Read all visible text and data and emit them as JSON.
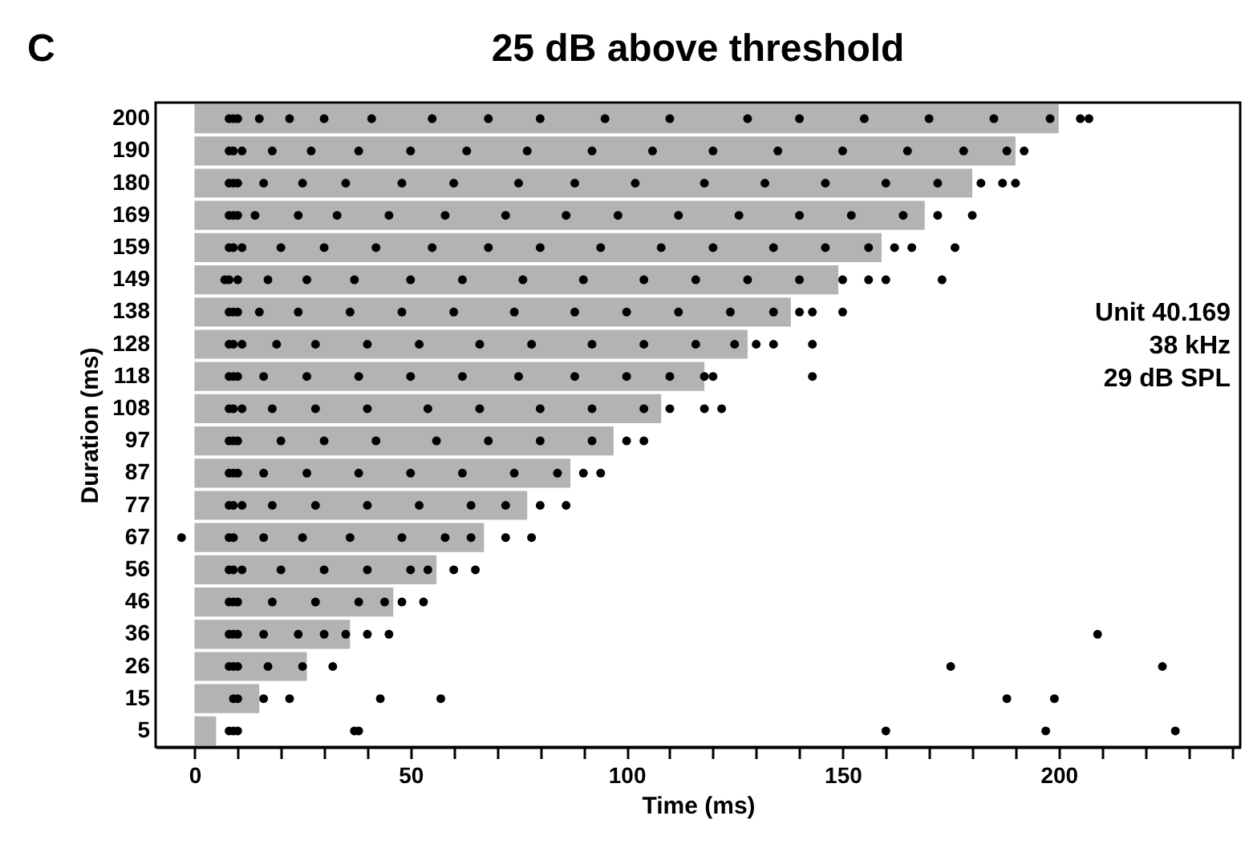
{
  "chart_data": {
    "type": "bar",
    "orientation": "horizontal",
    "title": "25 dB above threshold",
    "xlabel": "Time (ms)",
    "ylabel": "Duration (ms)",
    "annotations": [
      "C",
      "Unit 40.169",
      "38 kHz",
      "29 dB SPL"
    ],
    "categories": [
      "200",
      "190",
      "180",
      "169",
      "159",
      "149",
      "138",
      "128",
      "118",
      "108",
      "97",
      "87",
      "77",
      "67",
      "56",
      "46",
      "36",
      "26",
      "15",
      "5"
    ],
    "xlim": [
      -9,
      242
    ],
    "xticks": [
      0,
      {
        "value": 10,
        "label": null
      },
      {
        "value": 20,
        "label": null
      },
      {
        "value": 30,
        "label": null
      },
      {
        "value": 40,
        "label": null
      },
      50,
      {
        "value": 60,
        "label": null
      },
      {
        "value": 70,
        "label": null
      },
      {
        "value": 80,
        "label": null
      },
      {
        "value": 90,
        "label": null
      },
      100,
      {
        "value": 110,
        "label": null
      },
      {
        "value": 120,
        "label": null
      },
      {
        "value": 130,
        "label": null
      },
      {
        "value": 140,
        "label": null
      },
      150,
      {
        "value": 160,
        "label": null
      },
      {
        "value": 170,
        "label": null
      },
      {
        "value": 180,
        "label": null
      },
      {
        "value": 190,
        "label": null
      },
      200,
      {
        "value": 210,
        "label": null
      },
      {
        "value": 220,
        "label": null
      },
      {
        "value": 230,
        "label": null
      },
      {
        "value": 240,
        "label": null
      }
    ],
    "grid": false,
    "series": [
      {
        "color": "#b3b3b3",
        "values": [
          200,
          190,
          180,
          169,
          159,
          149,
          138,
          128,
          118,
          108,
          97,
          87,
          77,
          67,
          56,
          46,
          36,
          26,
          15,
          5
        ]
      },
      {
        "type": "scatter",
        "color": "#000000",
        "marker": "circle",
        "x": [
          "200",
          "200",
          "200",
          "200",
          "200",
          "200",
          "200",
          "200",
          "200",
          "200",
          "200",
          "200",
          "200",
          "200",
          "200",
          "200",
          "200",
          "200",
          "200",
          "200",
          "190",
          "190",
          "190",
          "190",
          "190",
          "190",
          "190",
          "190",
          "190",
          "190",
          "190",
          "190",
          "190",
          "190",
          "190",
          "190",
          "190",
          "190",
          "180",
          "180",
          "180",
          "180",
          "180",
          "180",
          "180",
          "180",
          "180",
          "180",
          "180",
          "180",
          "180",
          "180",
          "180",
          "180",
          "180",
          "180",
          "180",
          "169",
          "169",
          "169",
          "169",
          "169",
          "169",
          "169",
          "169",
          "169",
          "169",
          "169",
          "169",
          "169",
          "169",
          "169",
          "169",
          "169",
          "169",
          "159",
          "159",
          "159",
          "159",
          "159",
          "159",
          "159",
          "159",
          "159",
          "159",
          "159",
          "159",
          "159",
          "159",
          "159",
          "159",
          "159",
          "159",
          "149",
          "149",
          "149",
          "149",
          "149",
          "149",
          "149",
          "149",
          "149",
          "149",
          "149",
          "149",
          "149",
          "149",
          "149",
          "149",
          "149",
          "149",
          "138",
          "138",
          "138",
          "138",
          "138",
          "138",
          "138",
          "138",
          "138",
          "138",
          "138",
          "138",
          "138",
          "138",
          "138",
          "138",
          "138",
          "128",
          "128",
          "128",
          "128",
          "128",
          "128",
          "128",
          "128",
          "128",
          "128",
          "128",
          "128",
          "128",
          "128",
          "128",
          "128",
          "118",
          "118",
          "118",
          "118",
          "118",
          "118",
          "118",
          "118",
          "118",
          "118",
          "118",
          "118",
          "118",
          "118",
          "118",
          "108",
          "108",
          "108",
          "108",
          "108",
          "108",
          "108",
          "108",
          "108",
          "108",
          "108",
          "108",
          "108",
          "108",
          "97",
          "97",
          "97",
          "97",
          "97",
          "97",
          "97",
          "97",
          "97",
          "97",
          "97",
          "97",
          "87",
          "87",
          "87",
          "87",
          "87",
          "87",
          "87",
          "87",
          "87",
          "87",
          "87",
          "87",
          "77",
          "77",
          "77",
          "77",
          "77",
          "77",
          "77",
          "77",
          "77",
          "77",
          "77",
          "67",
          "67",
          "67",
          "67",
          "67",
          "67",
          "67",
          "67",
          "67",
          "67",
          "67",
          "56",
          "56",
          "56",
          "56",
          "56",
          "56",
          "56",
          "56",
          "56",
          "56",
          "46",
          "46",
          "46",
          "46",
          "46",
          "46",
          "46",
          "46",
          "46",
          "36",
          "36",
          "36",
          "36",
          "36",
          "36",
          "36",
          "36",
          "36",
          "36",
          "26",
          "26",
          "26",
          "26",
          "26",
          "26",
          "26",
          "26",
          "15",
          "15",
          "15",
          "15",
          "15",
          "15",
          "15",
          "15",
          "5",
          "5",
          "5",
          "5",
          "5",
          "5",
          "5",
          "5"
        ],
        "values": [
          8,
          9,
          10,
          15,
          22,
          30,
          41,
          55,
          68,
          80,
          95,
          110,
          128,
          140,
          155,
          170,
          185,
          198,
          205,
          207,
          8,
          9,
          11,
          18,
          27,
          38,
          50,
          63,
          77,
          92,
          106,
          120,
          135,
          150,
          165,
          178,
          188,
          192,
          8,
          9,
          10,
          16,
          25,
          35,
          48,
          60,
          75,
          88,
          102,
          118,
          132,
          146,
          160,
          172,
          182,
          187,
          190,
          8,
          9,
          10,
          14,
          24,
          33,
          45,
          58,
          72,
          86,
          98,
          112,
          126,
          140,
          152,
          164,
          172,
          180,
          8,
          9,
          11,
          20,
          30,
          42,
          55,
          68,
          80,
          94,
          108,
          120,
          134,
          146,
          156,
          162,
          166,
          176,
          7,
          8,
          10,
          17,
          26,
          37,
          50,
          62,
          76,
          90,
          104,
          116,
          128,
          140,
          150,
          156,
          160,
          173,
          8,
          9,
          10,
          15,
          24,
          36,
          48,
          60,
          74,
          88,
          100,
          112,
          124,
          134,
          140,
          143,
          150,
          8,
          9,
          11,
          19,
          28,
          40,
          52,
          66,
          78,
          92,
          104,
          116,
          125,
          130,
          134,
          143,
          8,
          9,
          10,
          16,
          26,
          38,
          50,
          62,
          75,
          88,
          100,
          110,
          118,
          120,
          143,
          8,
          9,
          11,
          18,
          28,
          40,
          54,
          66,
          80,
          92,
          104,
          110,
          118,
          122,
          8,
          9,
          10,
          20,
          30,
          42,
          56,
          68,
          80,
          92,
          100,
          104,
          8,
          9,
          10,
          16,
          26,
          38,
          50,
          62,
          74,
          84,
          90,
          94,
          8,
          9,
          11,
          18,
          28,
          40,
          52,
          64,
          72,
          80,
          86,
          -3,
          8,
          9,
          16,
          25,
          36,
          48,
          58,
          64,
          72,
          78,
          8,
          9,
          11,
          20,
          30,
          40,
          50,
          54,
          60,
          65,
          8,
          9,
          10,
          18,
          28,
          38,
          44,
          48,
          53,
          8,
          9,
          10,
          16,
          24,
          30,
          35,
          40,
          45,
          209,
          8,
          9,
          10,
          17,
          25,
          32,
          175,
          224,
          9,
          10,
          16,
          22,
          43,
          57,
          188,
          199,
          8,
          9,
          10,
          37,
          38,
          160,
          197,
          227
        ]
      }
    ]
  }
}
